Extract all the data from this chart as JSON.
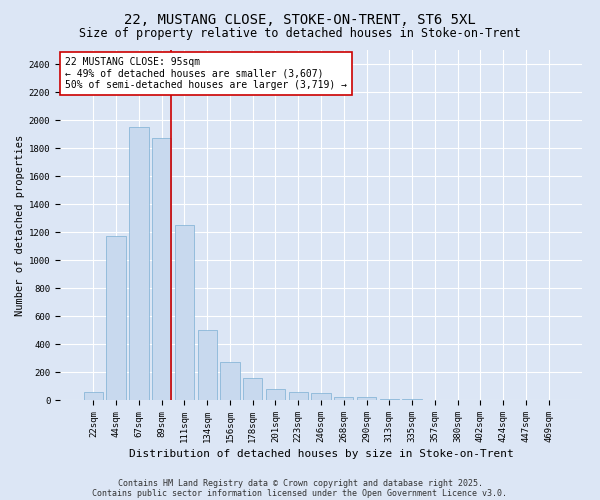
{
  "title": "22, MUSTANG CLOSE, STOKE-ON-TRENT, ST6 5XL",
  "subtitle": "Size of property relative to detached houses in Stoke-on-Trent",
  "xlabel": "Distribution of detached houses by size in Stoke-on-Trent",
  "ylabel": "Number of detached properties",
  "categories": [
    "22sqm",
    "44sqm",
    "67sqm",
    "89sqm",
    "111sqm",
    "134sqm",
    "156sqm",
    "178sqm",
    "201sqm",
    "223sqm",
    "246sqm",
    "268sqm",
    "290sqm",
    "313sqm",
    "335sqm",
    "357sqm",
    "380sqm",
    "402sqm",
    "424sqm",
    "447sqm",
    "469sqm"
  ],
  "values": [
    60,
    1170,
    1950,
    1870,
    1250,
    500,
    270,
    160,
    80,
    55,
    50,
    20,
    18,
    8,
    4,
    3,
    2,
    1,
    0,
    0,
    0
  ],
  "bar_color": "#c8d9ee",
  "bar_edge_color": "#7bafd4",
  "background_color": "#dce6f5",
  "grid_color": "#ffffff",
  "vline_x_index": 3,
  "vline_color": "#cc0000",
  "annotation_text": "22 MUSTANG CLOSE: 95sqm\n← 49% of detached houses are smaller (3,607)\n50% of semi-detached houses are larger (3,719) →",
  "annotation_box_color": "#ffffff",
  "annotation_box_edge_color": "#cc0000",
  "ylim": [
    0,
    2500
  ],
  "yticks": [
    0,
    200,
    400,
    600,
    800,
    1000,
    1200,
    1400,
    1600,
    1800,
    2000,
    2200,
    2400
  ],
  "footer_line1": "Contains HM Land Registry data © Crown copyright and database right 2025.",
  "footer_line2": "Contains public sector information licensed under the Open Government Licence v3.0.",
  "title_fontsize": 10,
  "subtitle_fontsize": 8.5,
  "xlabel_fontsize": 8,
  "ylabel_fontsize": 7.5,
  "tick_fontsize": 6.5,
  "annotation_fontsize": 7,
  "footer_fontsize": 6
}
